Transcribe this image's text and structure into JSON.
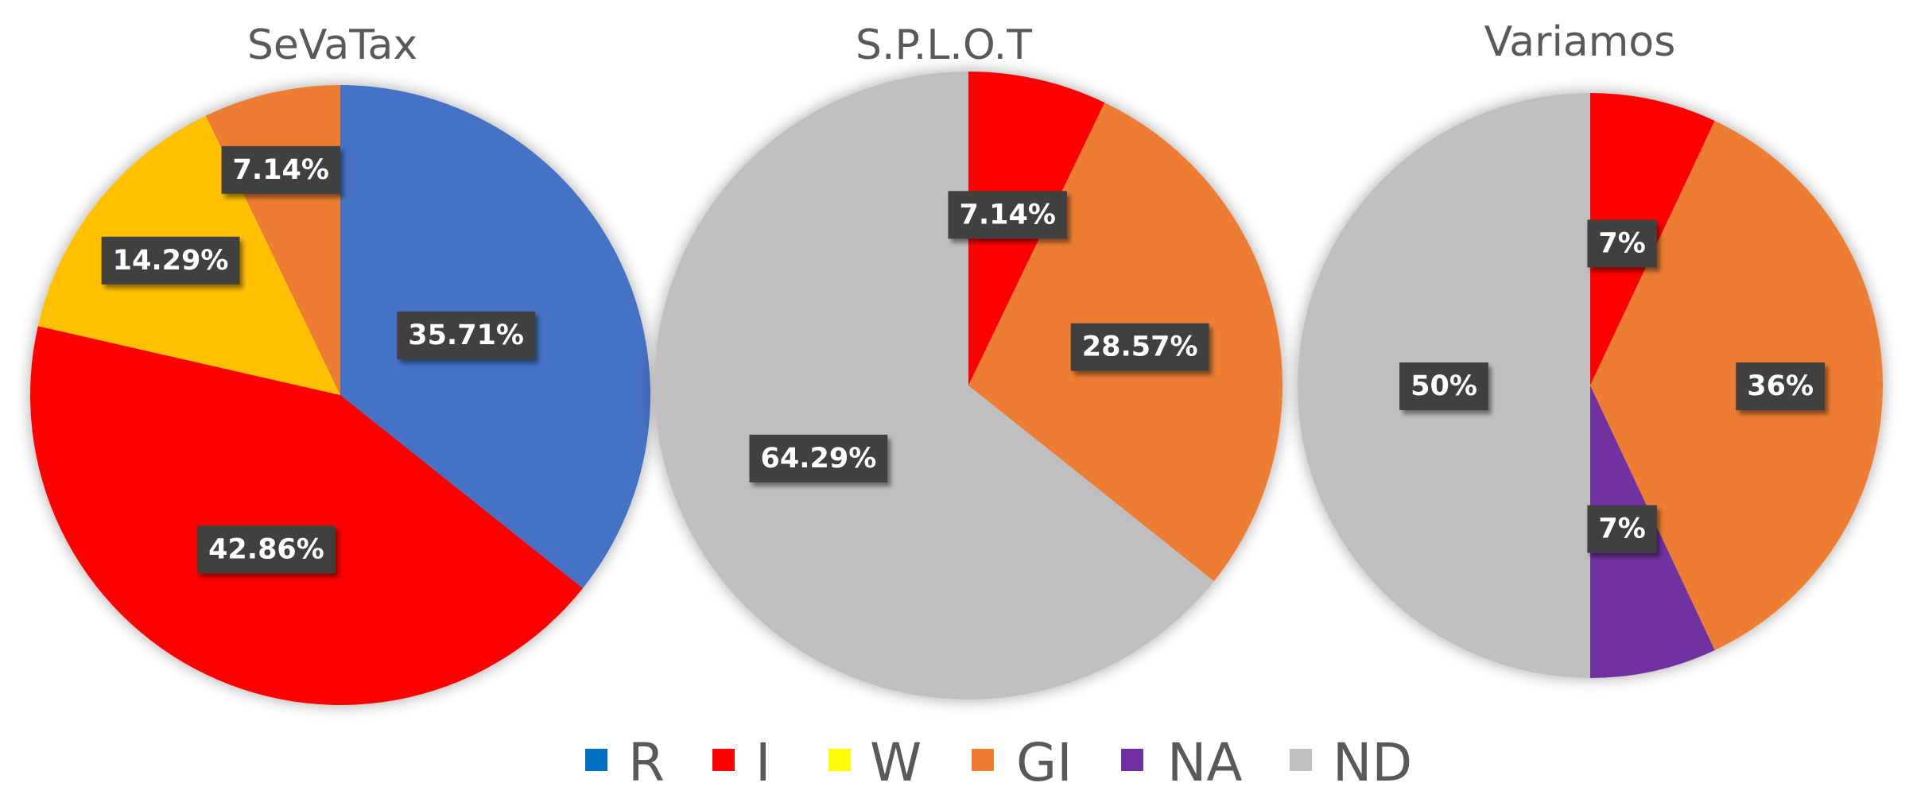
{
  "colors": {
    "R": "#4472C4",
    "I": "#FF0000",
    "W": "#FFC000",
    "GI": "#ED7D31",
    "NA": "#7030A0",
    "ND": "#BFBFBF",
    "label_box": "#404040",
    "label_text": "#FFFFFF",
    "title_text": "#595959"
  },
  "legend": {
    "position": "bottom",
    "items": [
      {
        "key": "R",
        "label": "R",
        "color": "#0070C0"
      },
      {
        "key": "I",
        "label": "I",
        "color": "#FF0000"
      },
      {
        "key": "W",
        "label": "W",
        "color": "#FFFF00"
      },
      {
        "key": "GI",
        "label": "GI",
        "color": "#ED7D31"
      },
      {
        "key": "NA",
        "label": "NA",
        "color": "#7030A0"
      },
      {
        "key": "ND",
        "label": "ND",
        "color": "#BFBFBF"
      }
    ]
  },
  "chart_data": [
    {
      "type": "pie",
      "title": "SeVaTax",
      "slices": [
        {
          "category": "R",
          "value": 35.71,
          "label": "35.71%"
        },
        {
          "category": "I",
          "value": 42.86,
          "label": "42.86%"
        },
        {
          "category": "W",
          "value": 14.29,
          "label": "14.29%"
        },
        {
          "category": "GI",
          "value": 7.14,
          "label": "7.14%"
        }
      ]
    },
    {
      "type": "pie",
      "title": "S.P.L.O.T",
      "slices": [
        {
          "category": "I",
          "value": 7.14,
          "label": "7.14%"
        },
        {
          "category": "GI",
          "value": 28.57,
          "label": "28.57%"
        },
        {
          "category": "ND",
          "value": 64.29,
          "label": "64.29%"
        }
      ]
    },
    {
      "type": "pie",
      "title": "Variamos",
      "slices": [
        {
          "category": "I",
          "value": 7,
          "label": "7%"
        },
        {
          "category": "GI",
          "value": 36,
          "label": "36%"
        },
        {
          "category": "NA",
          "value": 7,
          "label": "7%"
        },
        {
          "category": "ND",
          "value": 50,
          "label": "50%"
        }
      ]
    }
  ]
}
